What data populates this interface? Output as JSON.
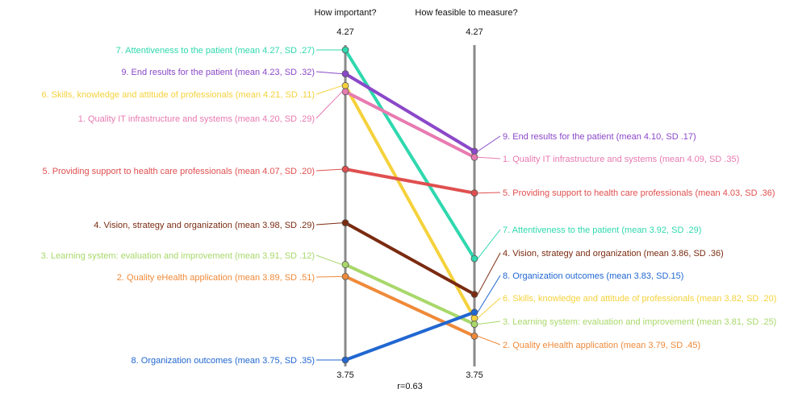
{
  "chart_data": {
    "type": "slope",
    "columns": [
      "How important?",
      "How feasible to measure?"
    ],
    "axis_max_label": "4.27",
    "axis_min_label": "3.75",
    "ylim": [
      3.75,
      4.27
    ],
    "correlation": "r=0.63",
    "grid": false,
    "series": [
      {
        "name": "7. Attentiveness to the patient",
        "color": "#2fd8ae",
        "left_value": 4.27,
        "right_value": 3.92,
        "left_label": "7. Attentiveness to the patient (mean 4.27, SD .27)",
        "right_label": "7. Attentiveness to the patient (mean 3.92, SD .29)"
      },
      {
        "name": "9. End results for the patient",
        "color": "#8b48c9",
        "left_value": 4.23,
        "right_value": 4.1,
        "left_label": "9. End results for the patient (mean 4.23, SD .32)",
        "right_label": "9. End results for the patient (mean 4.10, SD .17)"
      },
      {
        "name": "6. Skills, knowledge and attitude of professionals",
        "color": "#f5d23c",
        "left_value": 4.21,
        "right_value": 3.82,
        "left_label": "6. Skills, knowledge and attitude of professionals (mean 4.21, SD .11)",
        "right_label": "6. Skills, knowledge and attitude of  professionals (mean 3.82, SD .20)"
      },
      {
        "name": "1. Quality IT infrastructure and systems",
        "color": "#e87ab0",
        "left_value": 4.2,
        "right_value": 4.09,
        "left_label": "1. Quality IT infrastructure and systems (mean 4.20, SD .29)",
        "right_label": "1. Quality IT infrastructure and systems (mean 4.09, SD .35)"
      },
      {
        "name": "5. Providing support to health care professionals",
        "color": "#e04f4f",
        "left_value": 4.07,
        "right_value": 4.03,
        "left_label": "5. Providing support to health care professionals (mean 4.07, SD .20)",
        "right_label": "5. Providing support to health care professionals (mean 4.03, SD .36)"
      },
      {
        "name": "4. Vision, strategy and organization",
        "color": "#7a2b10",
        "left_value": 3.98,
        "right_value": 3.86,
        "left_label": "4. Vision, strategy and organization (mean 3.98, SD .29)",
        "right_label": "4. Vision, strategy and organization (mean 3.86, SD .36)"
      },
      {
        "name": "3. Learning system: evaluation and improvement",
        "color": "#a8d86a",
        "left_value": 3.91,
        "right_value": 3.81,
        "left_label": "3. Learning system: evaluation and improvement (mean 3.91, SD .12)",
        "right_label": "3. Learning system: evaluation and improvement (mean 3.81, SD .25)"
      },
      {
        "name": "2. Quality eHealth application",
        "color": "#ef8a3a",
        "left_value": 3.89,
        "right_value": 3.79,
        "left_label": "2. Quality eHealth application (mean 3.89, SD .51)",
        "right_label": "2. Quality eHealth application (mean 3.79, SD .45)"
      },
      {
        "name": "8. Organization outcomes",
        "color": "#2167d1",
        "left_value": 3.75,
        "right_value": 3.83,
        "left_label": "8. Organization outcomes (mean 3.75, SD .35)",
        "right_label": "8. Organization outcomes (mean 3.83, SD.15)"
      }
    ]
  }
}
